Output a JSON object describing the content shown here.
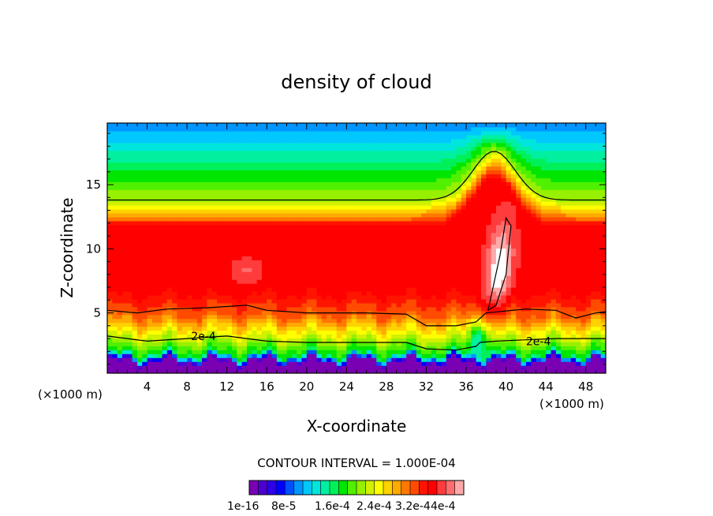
{
  "chart_data": {
    "type": "heatmap",
    "title": "density of cloud",
    "xlabel": "X-coordinate",
    "ylabel": "Z-coordinate",
    "x_unit_left": "(×1000 m)",
    "x_unit_right": "(×1000 m)",
    "xlim": [
      0,
      50
    ],
    "ylim": [
      0.3,
      19.8
    ],
    "x_ticks": [
      "4",
      "8",
      "12",
      "16",
      "20",
      "24",
      "28",
      "32",
      "36",
      "40",
      "44",
      "48"
    ],
    "y_ticks": [
      "5",
      "10",
      "15"
    ],
    "contour_interval_text": "CONTOUR INTERVAL = 1.000E-04",
    "contour_labels": [
      {
        "text": "2e-4",
        "x": 8.4,
        "z": 3.2
      },
      {
        "text": "2e-4",
        "x": 42.0,
        "z": 2.8
      }
    ],
    "colorbar": {
      "tick_labels": [
        "1e-16",
        "8e-5",
        "1.6e-4",
        "2.4e-4",
        "3.2e-4",
        "4e-4"
      ],
      "colors": [
        "#7a00b4",
        "#4b00d2",
        "#2d00e6",
        "#0000ff",
        "#0050ff",
        "#0096ff",
        "#00c8ff",
        "#00e6dc",
        "#00f0a0",
        "#00f05a",
        "#00e600",
        "#50f000",
        "#96f000",
        "#d2f000",
        "#ffff00",
        "#ffd200",
        "#ffaa00",
        "#ff7800",
        "#ff4b00",
        "#ff1400",
        "#ff0000",
        "#ff3c3c",
        "#ff6e6e",
        "#ffaaaa"
      ]
    }
  }
}
